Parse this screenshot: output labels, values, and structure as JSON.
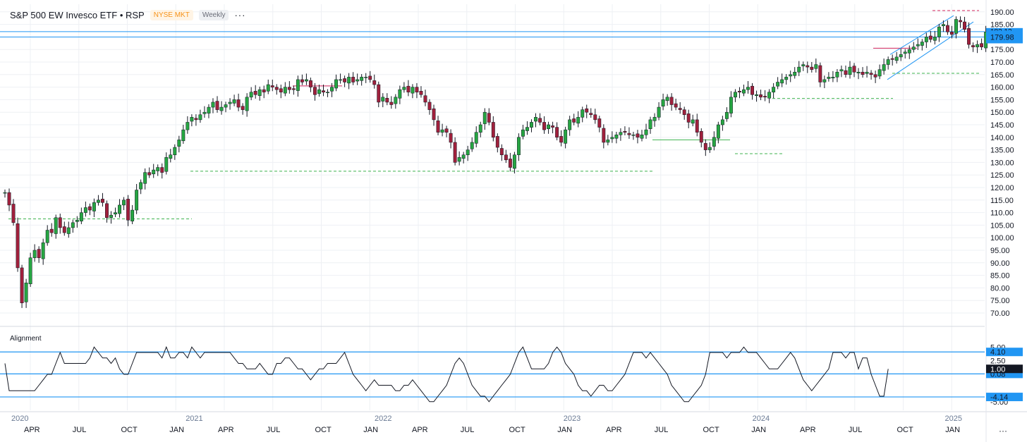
{
  "header": {
    "symbol": "S&P 500 EW Invesco ETF • RSP",
    "exchange": "NYSE MKT",
    "interval": "Weekly",
    "more": "···"
  },
  "indicator": {
    "title": "Alignment",
    "y_ticks": [
      "5.00",
      "2.50",
      "-5.00"
    ],
    "levels": [
      {
        "value": 4.1,
        "label": "4.10",
        "color": "#2196f3"
      },
      {
        "value": 0.08,
        "label": "0.08",
        "color": "#2196f3"
      },
      {
        "value": -4.14,
        "label": "-4.14",
        "color": "#2196f3"
      },
      {
        "value": 1.0,
        "label": "1.00",
        "color": "#131722"
      }
    ]
  },
  "colors": {
    "up": "#26a642",
    "down": "#a0203c",
    "accent": "#2196f3",
    "td_green": "#3fb34f",
    "td_red": "#d0235b",
    "grid": "#eef0f4"
  },
  "x_axis": {
    "years": [
      "2020",
      "2021",
      "2022",
      "2023",
      "2024",
      "2025"
    ],
    "months": [
      "APR",
      "JUL",
      "OCT",
      "JAN",
      "APR",
      "JUL",
      "OCT",
      "JAN",
      "APR",
      "JUL",
      "OCT",
      "JAN",
      "APR",
      "JUL",
      "OCT",
      "JAN",
      "APR",
      "JUL",
      "OCT",
      "JAN"
    ]
  },
  "corner_more": "···",
  "chart_data": [
    {
      "type": "candlestick",
      "title": "S&P 500 EW Invesco ETF • RSP",
      "interval": "Weekly",
      "x_range": [
        "2020-02",
        "2025-01"
      ],
      "ylim": [
        67,
        192
      ],
      "y_ticks": [
        "190.00",
        "185.00",
        "180.00",
        "175.00",
        "170.00",
        "165.00",
        "160.00",
        "155.00",
        "150.00",
        "145.00",
        "140.00",
        "135.00",
        "130.00",
        "125.00",
        "120.00",
        "115.00",
        "110.00",
        "105.00",
        "100.00",
        "95.00",
        "90.00",
        "85.00",
        "80.00",
        "75.00",
        "70.00"
      ],
      "price_labels": [
        {
          "value": 182.13,
          "label": "182.13"
        },
        {
          "value": 179.98,
          "label": "179.98"
        }
      ],
      "weekly_close": [
        118,
        113,
        106,
        88,
        74,
        82,
        92,
        95,
        92,
        98,
        103,
        102,
        108,
        104,
        102,
        104,
        106,
        107,
        110,
        112,
        111,
        114,
        115,
        114,
        108,
        109,
        110,
        113,
        115,
        107,
        111,
        119,
        122,
        126,
        125,
        127,
        128,
        126,
        132,
        133,
        136,
        139,
        143,
        146,
        148,
        147,
        149,
        150,
        152,
        154,
        151,
        152,
        153,
        154,
        155,
        152,
        151,
        156,
        158,
        157,
        159,
        158,
        161,
        160,
        159,
        158,
        160,
        159,
        159,
        163,
        162,
        163,
        160,
        157,
        159,
        158,
        158,
        160,
        163,
        163,
        162,
        164,
        162,
        163,
        164,
        164,
        163,
        161,
        154,
        156,
        154,
        153,
        156,
        159,
        160,
        158,
        160,
        158,
        157,
        154,
        151,
        147,
        142,
        143,
        142,
        138,
        130,
        132,
        133,
        135,
        138,
        142,
        145,
        150,
        146,
        140,
        136,
        133,
        131,
        128,
        133,
        140,
        143,
        144,
        146,
        148,
        146,
        143,
        145,
        144,
        140,
        138,
        143,
        147,
        146,
        148,
        151,
        150,
        149,
        147,
        144,
        138,
        139,
        140,
        141,
        142,
        142,
        141,
        141,
        140,
        141,
        143,
        147,
        148,
        152,
        155,
        156,
        153,
        152,
        151,
        149,
        146,
        147,
        142,
        138,
        135,
        136,
        140,
        145,
        147,
        150,
        156,
        158,
        158,
        159,
        160,
        157,
        157,
        156,
        156,
        158,
        160,
        162,
        163,
        164,
        165,
        166,
        168,
        169,
        168,
        167,
        169,
        162,
        163,
        164,
        164,
        166,
        167,
        165,
        168,
        166,
        166,
        165,
        166,
        165,
        164,
        167,
        169,
        171,
        171,
        172,
        173,
        174,
        175,
        176,
        177,
        178,
        180,
        179,
        180,
        184,
        185,
        182,
        181,
        187,
        186,
        183,
        177,
        176,
        177,
        176,
        182
      ]
    },
    {
      "type": "line",
      "title": "Alignment",
      "ylim": [
        -5.2,
        5.5
      ],
      "weekly_values": [
        2,
        -3,
        -3,
        -3,
        -3,
        -3,
        -3,
        -3,
        -2,
        -1,
        0,
        0,
        2,
        4,
        2,
        2,
        2,
        2,
        2,
        2,
        3,
        5,
        4,
        3,
        3,
        2,
        3,
        1,
        0,
        0,
        2,
        4,
        4,
        4,
        4,
        4,
        4,
        3,
        5,
        3,
        3,
        4,
        4,
        3,
        5,
        4,
        3,
        4,
        4,
        4,
        4,
        4,
        4,
        4,
        3,
        2,
        2,
        1,
        1,
        1,
        2,
        1,
        0,
        0,
        2,
        2,
        3,
        3,
        2,
        1,
        1,
        0,
        -1,
        0,
        1,
        1,
        2,
        2,
        2,
        3,
        4,
        2,
        0,
        -1,
        -2,
        -3,
        -2,
        -1,
        -2,
        -2,
        -2,
        -2,
        -3,
        -3,
        -2,
        -2,
        -1,
        -2,
        -3,
        -4,
        -5,
        -5,
        -4,
        -3,
        -2,
        0,
        2,
        3,
        2,
        0,
        -2,
        -3,
        -4,
        -4,
        -5,
        -4,
        -3,
        -2,
        -1,
        0,
        2,
        4,
        5,
        3,
        1,
        1,
        1,
        1,
        2,
        4,
        5,
        4,
        2,
        1,
        0,
        -2,
        -3,
        -3,
        -4,
        -3,
        -2,
        -2,
        -3,
        -3,
        -2,
        -1,
        0,
        2,
        4,
        4,
        4,
        3,
        4,
        3,
        2,
        1,
        0,
        -2,
        -3,
        -4,
        -5,
        -5,
        -4,
        -3,
        -2,
        0,
        4,
        4,
        4,
        4,
        3,
        4,
        4,
        4,
        5,
        4,
        4,
        4,
        3,
        2,
        1,
        1,
        1,
        2,
        3,
        4,
        3,
        1,
        -1,
        -2,
        -3,
        -2,
        -1,
        0,
        1,
        4,
        4,
        4,
        3,
        4,
        4,
        1,
        3,
        3,
        0,
        -2,
        -4,
        -4,
        1
      ]
    }
  ]
}
